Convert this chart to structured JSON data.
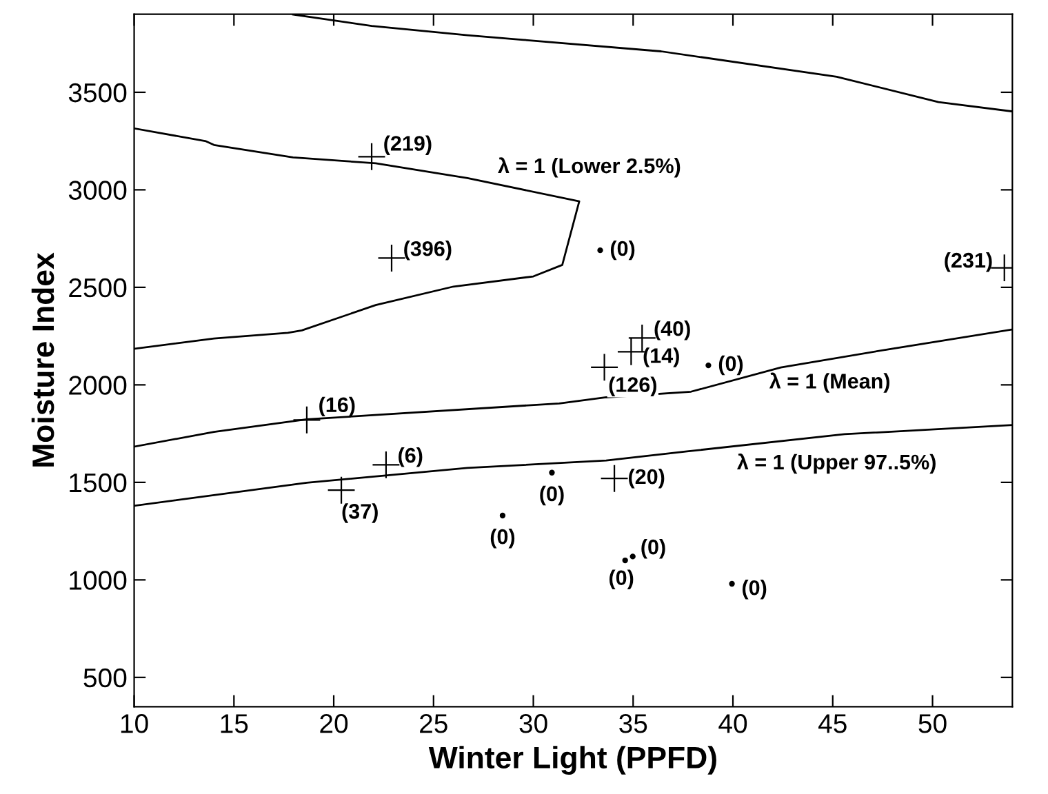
{
  "chart_data": {
    "type": "scatter",
    "xlabel": "Winter Light (PPFD)",
    "ylabel": "Moisture Index",
    "xlim": [
      10,
      54
    ],
    "ylim": [
      350,
      3900
    ],
    "xticks": [
      10,
      15,
      20,
      25,
      30,
      35,
      40,
      45,
      50
    ],
    "yticks": [
      500,
      1000,
      1500,
      2000,
      2500,
      3000,
      3500
    ],
    "grid": false,
    "legend": false,
    "series": [
      {
        "type": "line",
        "color": "#000000",
        "x": [
          17.96,
          21.9,
          26.7,
          29.5,
          36.4,
          45.2,
          50.3,
          54
        ],
        "values": [
          3899,
          3840,
          3793,
          3769,
          3710,
          3580,
          3450,
          3402
        ]
      },
      {
        "type": "line",
        "color": "#000000",
        "x": [
          10,
          13.6,
          14.0,
          17.96,
          22.1,
          26.7,
          32.3,
          31.45,
          30.0,
          26.0,
          22.1,
          18.4,
          17.7,
          14.0,
          10
        ],
        "values": [
          3315,
          3249,
          3230,
          3166,
          3136,
          3060,
          2941,
          2615,
          2556,
          2504,
          2409,
          2279,
          2267,
          2238,
          2185
        ]
      },
      {
        "type": "line",
        "color": "#000000",
        "x": [
          10,
          14,
          18.65,
          31.3,
          33.65,
          37.9,
          42.4,
          47.95,
          54
        ],
        "values": [
          1683,
          1759,
          1823,
          1905,
          1936,
          1965,
          2089,
          2185,
          2284
        ]
      },
      {
        "type": "line",
        "color": "#000000",
        "x": [
          10,
          18.65,
          26.7,
          33.65,
          37.7,
          45.6,
          54
        ],
        "values": [
          1380,
          1498,
          1574,
          1612,
          1659,
          1747,
          1794
        ]
      },
      {
        "marker": "cross",
        "color": "#000000",
        "x": [
          21.9,
          22.9,
          53.6,
          35.45,
          34.9,
          33.56,
          18.65,
          22.62,
          20.38,
          34.06
        ],
        "values": [
          3170,
          2650,
          2600,
          2240,
          2170,
          2090,
          1820,
          1590,
          1460,
          1520
        ]
      },
      {
        "marker": "circle",
        "color": "#000000",
        "x": [
          33.35,
          38.77,
          28.46,
          30.93,
          34.6,
          34.98,
          39.95
        ],
        "values": [
          2690,
          2100,
          1330,
          1550,
          1100,
          1120,
          980
        ]
      }
    ],
    "annotations": [
      {
        "text": "λ = 1 (Lower 2.5%)",
        "x": 28.7,
        "y": 3017
      },
      {
        "text": "λ = 1 (Mean)",
        "x": 44.7,
        "y": 2129
      },
      {
        "text": "λ = 1 (Upper 97..5%)",
        "x": 42.6,
        "y": 1714
      },
      {
        "text": "(219)",
        "x": 21.9,
        "y": 3170
      },
      {
        "text": "(396)",
        "x": 22.9,
        "y": 2650
      },
      {
        "text": "(231)",
        "x": 53.6,
        "y": 2600
      },
      {
        "text": "(40)",
        "x": 35.45,
        "y": 2240
      },
      {
        "text": "(14)",
        "x": 34.9,
        "y": 2170
      },
      {
        "text": "(126)",
        "x": 33.56,
        "y": 2090
      },
      {
        "text": "(16)",
        "x": 18.65,
        "y": 1820
      },
      {
        "text": "(6)",
        "x": 22.62,
        "y": 1590
      },
      {
        "text": "(37)",
        "x": 20.38,
        "y": 1460
      },
      {
        "text": "(20)",
        "x": 34.06,
        "y": 1520
      },
      {
        "text": "(0)",
        "x": 33.35,
        "y": 2690
      },
      {
        "text": "(0)",
        "x": 38.77,
        "y": 2100
      },
      {
        "text": "(0)",
        "x": 28.46,
        "y": 1330
      },
      {
        "text": "(0)",
        "x": 30.93,
        "y": 1550
      },
      {
        "text": "(0)",
        "x": 34.6,
        "y": 1100
      },
      {
        "text": "(0)",
        "x": 34.98,
        "y": 1120
      },
      {
        "text": "(0)",
        "x": 39.95,
        "y": 980
      }
    ]
  }
}
